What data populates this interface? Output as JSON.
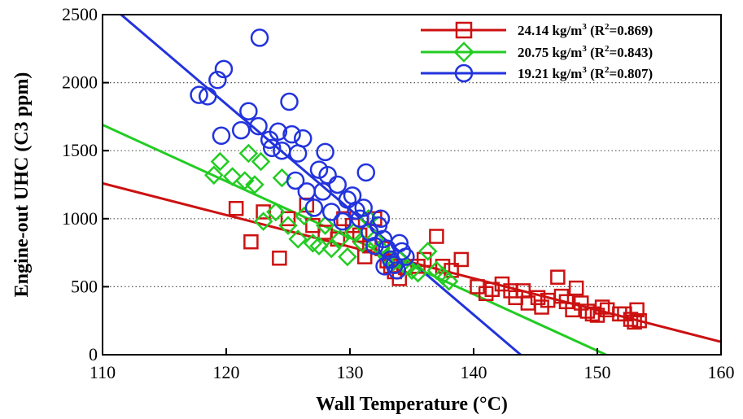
{
  "chart_data": {
    "type": "scatter",
    "title": "",
    "xlabel": "Wall Temperature (°C)",
    "ylabel": "Engine-out UHC (C3 ppm)",
    "xlim": [
      110,
      160
    ],
    "ylim": [
      0,
      2500
    ],
    "xticks": [
      110,
      120,
      130,
      140,
      150,
      160
    ],
    "yticks": [
      0,
      500,
      1000,
      1500,
      2000,
      2500
    ],
    "grid": "horizontal dotted",
    "legend_position": "top-right",
    "series": [
      {
        "name": "24.14 kg/m³ (R²=0.869)",
        "label_main": "24.14 kg/m",
        "label_sup1": "3",
        "label_mid": " (R",
        "label_sup2": "2",
        "label_end": "=0.869)",
        "marker": "square",
        "color": "#cc1111",
        "fit": {
          "x": [
            110,
            160
          ],
          "y": [
            1260,
            95
          ]
        },
        "points": [
          [
            120.8,
            1075
          ],
          [
            122,
            830
          ],
          [
            123,
            1050
          ],
          [
            124.3,
            710
          ],
          [
            125,
            1000
          ],
          [
            126.5,
            1100
          ],
          [
            127,
            950
          ],
          [
            128,
            900
          ],
          [
            129,
            850
          ],
          [
            129.5,
            1000
          ],
          [
            130.2,
            950
          ],
          [
            130.8,
            880
          ],
          [
            131.2,
            720
          ],
          [
            131.6,
            800
          ],
          [
            132,
            1000
          ],
          [
            132.6,
            780
          ],
          [
            133,
            690
          ],
          [
            133.3,
            650
          ],
          [
            133.6,
            610
          ],
          [
            134,
            560
          ],
          [
            134.5,
            640
          ],
          [
            135.5,
            650
          ],
          [
            136,
            700
          ],
          [
            137,
            870
          ],
          [
            137.5,
            650
          ],
          [
            138.2,
            620
          ],
          [
            139,
            700
          ],
          [
            140.3,
            500
          ],
          [
            141,
            450
          ],
          [
            141.5,
            480
          ],
          [
            142.3,
            520
          ],
          [
            143,
            470
          ],
          [
            143.4,
            420
          ],
          [
            144,
            470
          ],
          [
            144.4,
            380
          ],
          [
            145.2,
            420
          ],
          [
            145.5,
            350
          ],
          [
            146,
            400
          ],
          [
            146.8,
            570
          ],
          [
            147.1,
            430
          ],
          [
            147.5,
            390
          ],
          [
            148,
            330
          ],
          [
            148.3,
            490
          ],
          [
            148.7,
            380
          ],
          [
            149.2,
            320
          ],
          [
            149.6,
            300
          ],
          [
            150,
            290
          ],
          [
            150.4,
            350
          ],
          [
            150.8,
            330
          ],
          [
            151.8,
            300
          ],
          [
            152.2,
            300
          ],
          [
            152.7,
            260
          ],
          [
            153,
            240
          ],
          [
            153.2,
            330
          ],
          [
            153.4,
            250
          ]
        ]
      },
      {
        "name": "20.75 kg/m³ (R²=0.843)",
        "label_main": "20.75 kg/m",
        "label_sup1": "3",
        "label_mid": " (R",
        "label_sup2": "2",
        "label_end": "=0.843)",
        "marker": "diamond",
        "color": "#22cc22",
        "fit": {
          "x": [
            110,
            150.7
          ],
          "y": [
            1690,
            0
          ]
        },
        "points": [
          [
            119,
            1320
          ],
          [
            119.5,
            1420
          ],
          [
            120.5,
            1310
          ],
          [
            121.5,
            1280
          ],
          [
            121.8,
            1480
          ],
          [
            122.3,
            1250
          ],
          [
            122.8,
            1420
          ],
          [
            123,
            980
          ],
          [
            124,
            1050
          ],
          [
            124.5,
            1300
          ],
          [
            125,
            950
          ],
          [
            125.8,
            850
          ],
          [
            126.3,
            1020
          ],
          [
            127,
            820
          ],
          [
            127.5,
            800
          ],
          [
            128,
            950
          ],
          [
            128.5,
            780
          ],
          [
            129.2,
            850
          ],
          [
            129.8,
            720
          ],
          [
            130.3,
            900
          ],
          [
            131,
            820
          ],
          [
            131.5,
            1000
          ],
          [
            132,
            850
          ],
          [
            132.5,
            780
          ],
          [
            133,
            720
          ],
          [
            133.5,
            680
          ],
          [
            134,
            700
          ],
          [
            134.5,
            650
          ],
          [
            135,
            620
          ],
          [
            135.5,
            600
          ],
          [
            136.3,
            760
          ],
          [
            137,
            620
          ],
          [
            137.5,
            580
          ],
          [
            138,
            540
          ]
        ]
      },
      {
        "name": "19.21 kg/m³ (R²=0.807)",
        "label_main": "19.21 kg/m",
        "label_sup1": "3",
        "label_mid": " (R",
        "label_sup2": "2",
        "label_end": "=0.807)",
        "marker": "circle",
        "color": "#2233dd",
        "fit": {
          "x": [
            111.5,
            143.8
          ],
          "y": [
            2500,
            0
          ]
        },
        "points": [
          [
            117.8,
            1910
          ],
          [
            118.5,
            1900
          ],
          [
            119.3,
            2020
          ],
          [
            119.8,
            2100
          ],
          [
            119.6,
            1610
          ],
          [
            121.8,
            1790
          ],
          [
            121.2,
            1650
          ],
          [
            122.7,
            2330
          ],
          [
            122.6,
            1680
          ],
          [
            123.5,
            1580
          ],
          [
            123.7,
            1520
          ],
          [
            124.2,
            1640
          ],
          [
            124.5,
            1500
          ],
          [
            125.1,
            1860
          ],
          [
            125.3,
            1620
          ],
          [
            125.8,
            1480
          ],
          [
            126.2,
            1590
          ],
          [
            125.6,
            1280
          ],
          [
            126.5,
            1200
          ],
          [
            127.1,
            1080
          ],
          [
            127.5,
            1360
          ],
          [
            128,
            1490
          ],
          [
            128.2,
            1320
          ],
          [
            127.8,
            1200
          ],
          [
            128.5,
            1050
          ],
          [
            129,
            1250
          ],
          [
            129.4,
            980
          ],
          [
            129.8,
            1140
          ],
          [
            130.2,
            1170
          ],
          [
            130.5,
            1060
          ],
          [
            130.8,
            1000
          ],
          [
            131.1,
            1080
          ],
          [
            131.3,
            1340
          ],
          [
            131.6,
            900
          ],
          [
            132,
            800
          ],
          [
            132.3,
            950
          ],
          [
            132.5,
            1000
          ],
          [
            132.7,
            850
          ],
          [
            133,
            780
          ],
          [
            133.3,
            700
          ],
          [
            133.6,
            660
          ],
          [
            134,
            820
          ],
          [
            134.2,
            760
          ],
          [
            134.5,
            720
          ],
          [
            133.8,
            620
          ],
          [
            132.8,
            650
          ]
        ]
      }
    ]
  }
}
